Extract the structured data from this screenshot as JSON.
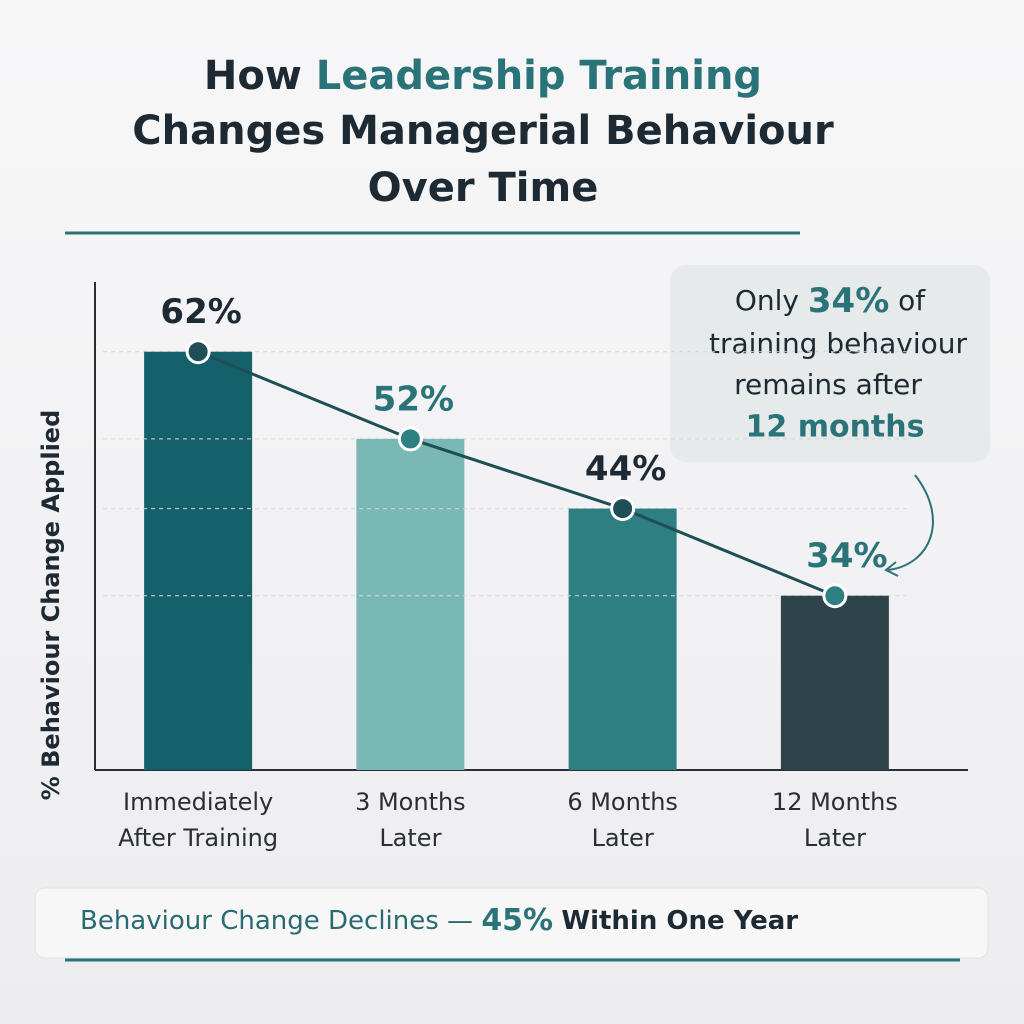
{
  "chart_data": {
    "type": "bar",
    "title": {
      "lead": "How",
      "highlight": "Leadership Training",
      "lines": [
        "Changes Managerial Behaviour",
        "Over Time"
      ]
    },
    "y_label": "% Behaviour Change Applied",
    "categories": [
      [
        "Immediately",
        "After Training"
      ],
      [
        "3 Months",
        "Later"
      ],
      [
        "6 Months",
        "Later"
      ],
      [
        "12 Months",
        "Later"
      ]
    ],
    "values": [
      62,
      52,
      44,
      34
    ],
    "value_labels": [
      "62%",
      "52%",
      "44%",
      "34%"
    ],
    "colors": [
      "#14616b",
      "#7ab8b6",
      "#2e7f82",
      "#2f434a"
    ],
    "line_color": "#1f4e57",
    "ylim": [
      14,
      70
    ],
    "annotation": {
      "lines": [
        [
          "Only",
          "34%",
          "of"
        ],
        [
          "training behaviour"
        ],
        [
          "remains after"
        ],
        [
          "12 months"
        ]
      ]
    },
    "footer": [
      "Behaviour Change Declines —",
      "45%",
      "Within One Year"
    ]
  }
}
